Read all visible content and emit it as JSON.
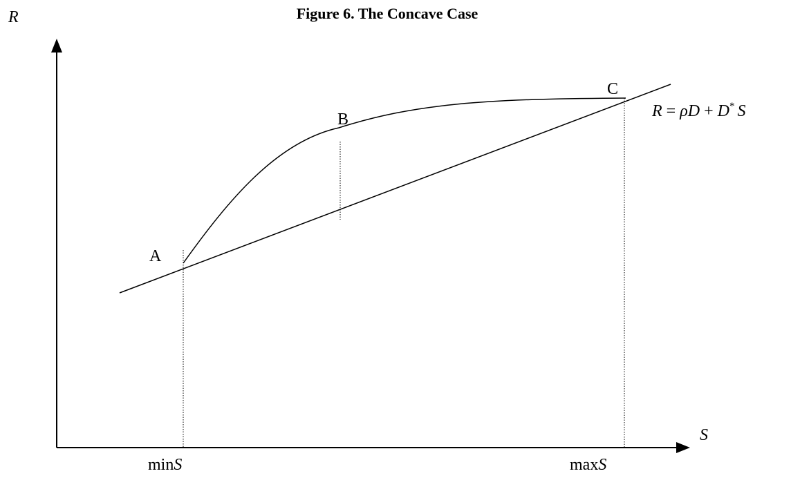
{
  "title": "Figure 6.   The Concave Case",
  "axes": {
    "y_label": "R",
    "x_label": "S"
  },
  "points": {
    "a": "A",
    "b": "B",
    "c": "C"
  },
  "equation": {
    "lhs": "R",
    "eq": " = ",
    "rho": "ρD",
    "plus": " + ",
    "d": "D",
    "sup": "*",
    "s": "S"
  },
  "min_label": {
    "prefix": "min",
    "var": "S"
  },
  "max_label": {
    "prefix": "max",
    "var": "S"
  }
}
